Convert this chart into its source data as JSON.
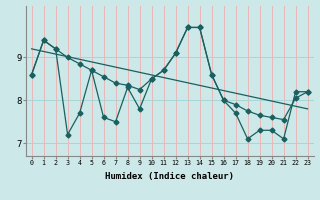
{
  "xlabel": "Humidex (Indice chaleur)",
  "xlim": [
    -0.5,
    23.5
  ],
  "ylim": [
    6.7,
    10.2
  ],
  "xtick_labels": [
    "0",
    "1",
    "2",
    "3",
    "4",
    "5",
    "6",
    "7",
    "8",
    "9",
    "10",
    "11",
    "12",
    "13",
    "14",
    "15",
    "16",
    "17",
    "18",
    "19",
    "20",
    "21",
    "22",
    "23"
  ],
  "ytick_values": [
    7,
    8,
    9
  ],
  "background_color": "#cce8e8",
  "grid_color": "#aad4d4",
  "line_color": "#1a6060",
  "main_y": [
    8.6,
    9.4,
    9.2,
    7.2,
    7.7,
    8.7,
    7.6,
    7.5,
    8.3,
    7.8,
    8.5,
    8.7,
    9.1,
    9.7,
    9.7,
    8.6,
    8.0,
    7.7,
    7.1,
    7.3,
    7.3,
    7.1,
    8.2,
    8.2
  ],
  "upper_y": [
    8.6,
    9.4,
    9.2,
    9.0,
    8.85,
    8.7,
    8.55,
    8.4,
    8.35,
    8.25,
    8.5,
    8.7,
    9.1,
    9.7,
    9.7,
    8.6,
    8.0,
    7.9,
    7.75,
    7.65,
    7.6,
    7.55,
    8.05,
    8.2
  ],
  "trend_y": [
    9.2,
    7.8
  ]
}
